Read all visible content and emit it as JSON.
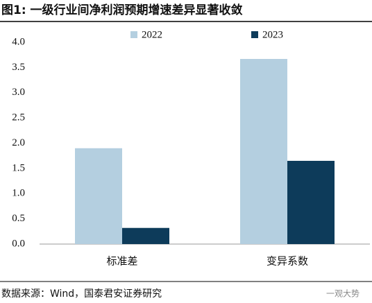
{
  "chart_data": {
    "type": "bar",
    "title": "图1: 一级行业间净利润预期增速差异显著收敛",
    "categories": [
      "标准差",
      "变异系数"
    ],
    "series": [
      {
        "name": "2022",
        "color": "#b4cfe0",
        "values": [
          1.9,
          3.67
        ]
      },
      {
        "name": "2023",
        "color": "#0d3b5a",
        "values": [
          0.32,
          1.65
        ]
      }
    ],
    "ylim": [
      0,
      4
    ],
    "yticks": [
      {
        "value": 0,
        "label": "0.0"
      },
      {
        "value": 0.5,
        "label": "0.5"
      },
      {
        "value": 1,
        "label": "1.0"
      },
      {
        "value": 1.5,
        "label": "1.5"
      },
      {
        "value": 2,
        "label": "2.0"
      },
      {
        "value": 2.5,
        "label": "2.5"
      },
      {
        "value": 3,
        "label": "3.0"
      },
      {
        "value": 3.5,
        "label": "3.5"
      },
      {
        "value": 4,
        "label": "4.0"
      }
    ],
    "source": "数据来源：Wind，国泰君安证券研究",
    "watermark": "一观大势"
  }
}
